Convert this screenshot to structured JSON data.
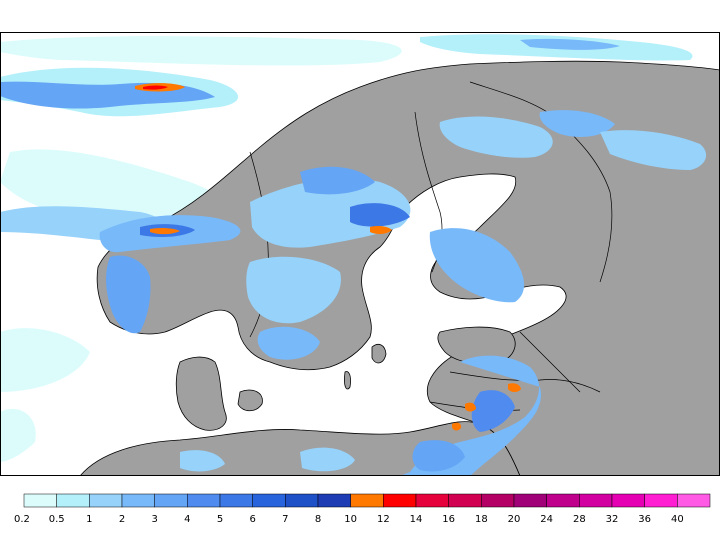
{
  "map": {
    "ocean_color": "#ffffff",
    "land_color": "#a0a0a0",
    "border_color": "#000000"
  },
  "legend": {
    "labels": [
      "0.2",
      "0.5",
      "1",
      "2",
      "3",
      "4",
      "5",
      "6",
      "7",
      "8",
      "10",
      "12",
      "14",
      "16",
      "18",
      "20",
      "24",
      "28",
      "32",
      "36",
      "40"
    ],
    "colors": [
      "#dcfcfc",
      "#b4f0fa",
      "#96d2fa",
      "#78b9fa",
      "#64a5f5",
      "#508cf0",
      "#3c78e6",
      "#2864dc",
      "#1e50c8",
      "#1e3cb4",
      "#ff7800",
      "#ff0000",
      "#e6003c",
      "#d20050",
      "#b40064",
      "#a00078",
      "#be008c",
      "#d200a0",
      "#e600b4",
      "#ff1ed2",
      "#ff5ae6"
    ]
  }
}
